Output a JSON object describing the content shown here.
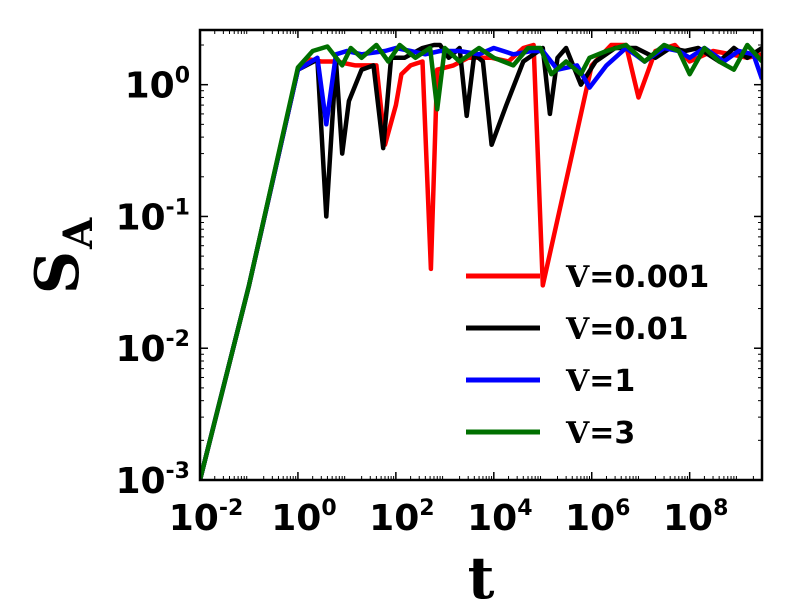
{
  "chart_data": {
    "type": "line",
    "x_scale": "log",
    "y_scale": "log",
    "xlim": [
      0.01,
      3000000000
    ],
    "ylim": [
      0.001,
      2.6
    ],
    "xlabel": "t",
    "ylabel": "S",
    "ylabel_sub": "A",
    "x_ticks": [
      {
        "base": "10",
        "exp": "-2",
        "value": 0.01
      },
      {
        "base": "10",
        "exp": "0",
        "value": 1
      },
      {
        "base": "10",
        "exp": "2",
        "value": 100
      },
      {
        "base": "10",
        "exp": "4",
        "value": 10000
      },
      {
        "base": "10",
        "exp": "6",
        "value": 1000000
      },
      {
        "base": "10",
        "exp": "8",
        "value": 100000000
      }
    ],
    "y_ticks": [
      {
        "base": "10",
        "exp": "0",
        "value": 1
      },
      {
        "base": "10",
        "exp": "-1",
        "value": 0.1
      },
      {
        "base": "10",
        "exp": "-2",
        "value": 0.01
      },
      {
        "base": "10",
        "exp": "-3",
        "value": 0.001
      }
    ],
    "legend_position": "lower-right",
    "series": [
      {
        "name": "V=0.001",
        "legend_prefix": "V",
        "legend_suffix": "=0.001",
        "color": "#ff0000",
        "points": [
          [
            0.01,
            0.001
          ],
          [
            0.1,
            0.03
          ],
          [
            1,
            1.3
          ],
          [
            1.8,
            1.55
          ],
          [
            3,
            1.5
          ],
          [
            6,
            1.5
          ],
          [
            15,
            1.4
          ],
          [
            40,
            1.4
          ],
          [
            60,
            0.35
          ],
          [
            100,
            0.7
          ],
          [
            130,
            1.2
          ],
          [
            200,
            1.4
          ],
          [
            350,
            1.5
          ],
          [
            520,
            0.04
          ],
          [
            700,
            1.3
          ],
          [
            1500,
            1.4
          ],
          [
            3000,
            1.6
          ],
          [
            9000,
            1.6
          ],
          [
            20000,
            1.5
          ],
          [
            40000,
            1.9
          ],
          [
            65000,
            2.0
          ],
          [
            100000,
            0.03
          ],
          [
            400000,
            0.3
          ],
          [
            1000000,
            1.4
          ],
          [
            2500000,
            2.0
          ],
          [
            5000000,
            2.0
          ],
          [
            9000000,
            0.8
          ],
          [
            20000000,
            1.8
          ],
          [
            50000000,
            2.0
          ],
          [
            100000000,
            1.5
          ],
          [
            300000000,
            1.8
          ],
          [
            700000000,
            1.7
          ],
          [
            1500000000,
            1.6
          ],
          [
            3000000000,
            1.7
          ]
        ]
      },
      {
        "name": "V=0.01",
        "legend_prefix": "V",
        "legend_suffix": "=0.01",
        "color": "#000000",
        "points": [
          [
            0.01,
            0.001
          ],
          [
            0.1,
            0.03
          ],
          [
            1,
            1.3
          ],
          [
            2.5,
            1.55
          ],
          [
            3.8,
            0.1
          ],
          [
            6,
            1.5
          ],
          [
            8,
            0.3
          ],
          [
            11,
            0.75
          ],
          [
            20,
            1.3
          ],
          [
            35,
            1.4
          ],
          [
            55,
            0.33
          ],
          [
            80,
            1.6
          ],
          [
            150,
            1.6
          ],
          [
            350,
            1.9
          ],
          [
            600,
            2.0
          ],
          [
            800,
            2.0
          ],
          [
            1200,
            1.6
          ],
          [
            2000,
            1.9
          ],
          [
            2800,
            0.58
          ],
          [
            4000,
            1.7
          ],
          [
            6000,
            1.5
          ],
          [
            9000,
            0.35
          ],
          [
            18000,
            0.7
          ],
          [
            40000,
            1.5
          ],
          [
            100000,
            1.9
          ],
          [
            140000,
            0.6
          ],
          [
            200000,
            1.6
          ],
          [
            300000,
            1.9
          ],
          [
            600000,
            1.0
          ],
          [
            1200000,
            1.5
          ],
          [
            3000000,
            1.9
          ],
          [
            8000000,
            1.9
          ],
          [
            20000000,
            1.6
          ],
          [
            40000000,
            1.9
          ],
          [
            80000000,
            1.8
          ],
          [
            150000000,
            1.9
          ],
          [
            400000000,
            1.5
          ],
          [
            800000000,
            1.9
          ],
          [
            1500000000,
            1.6
          ],
          [
            3000000000,
            1.9
          ]
        ]
      },
      {
        "name": "V=1",
        "legend_prefix": "V",
        "legend_suffix": "=1",
        "color": "#0000ff",
        "points": [
          [
            0.01,
            0.001
          ],
          [
            0.1,
            0.03
          ],
          [
            1,
            1.3
          ],
          [
            2.5,
            1.6
          ],
          [
            3.8,
            0.5
          ],
          [
            6,
            1.7
          ],
          [
            10,
            1.8
          ],
          [
            20,
            1.7
          ],
          [
            60,
            1.8
          ],
          [
            100,
            1.9
          ],
          [
            200,
            1.8
          ],
          [
            400,
            1.7
          ],
          [
            800,
            1.8
          ],
          [
            2000,
            1.8
          ],
          [
            5000,
            1.7
          ],
          [
            10000,
            1.9
          ],
          [
            25000,
            1.7
          ],
          [
            60000,
            1.8
          ],
          [
            100000,
            1.8
          ],
          [
            200000,
            1.3
          ],
          [
            500000,
            1.4
          ],
          [
            900000,
            0.95
          ],
          [
            2000000,
            1.4
          ],
          [
            5000000,
            1.9
          ],
          [
            12000000,
            1.5
          ],
          [
            30000000,
            1.9
          ],
          [
            60000000,
            1.8
          ],
          [
            100000000,
            1.6
          ],
          [
            200000000,
            1.9
          ],
          [
            500000000,
            1.5
          ],
          [
            1000000000,
            1.8
          ],
          [
            2000000000,
            1.7
          ],
          [
            3000000000,
            1.1
          ]
        ]
      },
      {
        "name": "V=3",
        "legend_prefix": "V",
        "legend_suffix": "=3",
        "color": "#007000",
        "points": [
          [
            0.01,
            0.001
          ],
          [
            0.1,
            0.03
          ],
          [
            1,
            1.35
          ],
          [
            2,
            1.8
          ],
          [
            4,
            1.95
          ],
          [
            8,
            1.4
          ],
          [
            12,
            1.9
          ],
          [
            20,
            1.6
          ],
          [
            40,
            2.0
          ],
          [
            70,
            1.5
          ],
          [
            120,
            2.0
          ],
          [
            250,
            1.6
          ],
          [
            500,
            1.9
          ],
          [
            700,
            0.65
          ],
          [
            1000,
            1.9
          ],
          [
            2000,
            1.5
          ],
          [
            5000,
            1.9
          ],
          [
            10000,
            1.6
          ],
          [
            25000,
            1.4
          ],
          [
            50000,
            1.9
          ],
          [
            90000,
            1.9
          ],
          [
            150000,
            1.2
          ],
          [
            300000,
            1.5
          ],
          [
            600000,
            1.2
          ],
          [
            900000,
            1.6
          ],
          [
            2000000,
            1.8
          ],
          [
            5000000,
            2.0
          ],
          [
            12000000,
            1.5
          ],
          [
            30000000,
            2.0
          ],
          [
            60000000,
            1.8
          ],
          [
            100000000,
            1.2
          ],
          [
            200000000,
            1.9
          ],
          [
            400000000,
            1.5
          ],
          [
            800000000,
            1.3
          ],
          [
            1500000000,
            2.0
          ],
          [
            3000000000,
            1.5
          ]
        ]
      }
    ]
  }
}
